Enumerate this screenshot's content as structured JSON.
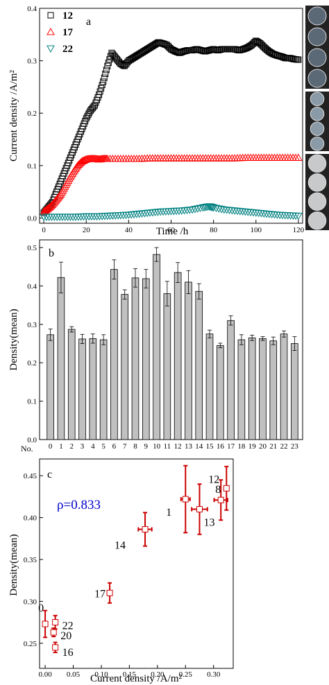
{
  "chart_data": [
    {
      "panel": "a",
      "type": "scatter",
      "xlabel": "Time /h",
      "ylabel": "Current density /A/m²",
      "xlim": [
        -2,
        122
      ],
      "ylim": [
        -0.01,
        0.4
      ],
      "xticks": [
        "0",
        "20",
        "40",
        "60",
        "80",
        "100",
        "120"
      ],
      "yticks": [
        "0.0",
        "0.1",
        "0.2",
        "0.3",
        "0.4"
      ],
      "legend_position": "top-left",
      "series": [
        {
          "name": "12",
          "marker": "square",
          "color": "#000000",
          "x": [
            0,
            2,
            4,
            6,
            8,
            10,
            12,
            14,
            16,
            18,
            20,
            22,
            24,
            26,
            28,
            30,
            32,
            34,
            36,
            38,
            40,
            42,
            44,
            46,
            48,
            50,
            52,
            54,
            56,
            58,
            60,
            62,
            64,
            66,
            68,
            70,
            72,
            74,
            76,
            78,
            80,
            82,
            84,
            86,
            88,
            90,
            92,
            94,
            96,
            98,
            100,
            102,
            104,
            106,
            108,
            110,
            112,
            114,
            116,
            118,
            120
          ],
          "y": [
            0.01,
            0.02,
            0.03,
            0.05,
            0.07,
            0.09,
            0.11,
            0.13,
            0.15,
            0.17,
            0.19,
            0.205,
            0.215,
            0.235,
            0.26,
            0.29,
            0.315,
            0.305,
            0.295,
            0.29,
            0.3,
            0.305,
            0.31,
            0.315,
            0.32,
            0.325,
            0.33,
            0.335,
            0.333,
            0.33,
            0.322,
            0.318,
            0.315,
            0.318,
            0.32,
            0.32,
            0.322,
            0.32,
            0.318,
            0.32,
            0.322,
            0.32,
            0.322,
            0.322,
            0.322,
            0.322,
            0.32,
            0.322,
            0.325,
            0.33,
            0.338,
            0.333,
            0.325,
            0.318,
            0.313,
            0.31,
            0.308,
            0.305,
            0.305,
            0.303,
            0.302
          ]
        },
        {
          "name": "17",
          "marker": "triangle-up",
          "color": "#ff0000",
          "x": [
            0,
            2,
            4,
            6,
            8,
            10,
            12,
            14,
            16,
            18,
            20,
            22,
            24,
            26,
            28,
            30,
            35,
            40,
            45,
            50,
            55,
            60,
            65,
            70,
            75,
            80,
            85,
            90,
            95,
            100,
            105,
            110,
            115,
            120
          ],
          "y": [
            0.012,
            0.018,
            0.025,
            0.035,
            0.045,
            0.06,
            0.075,
            0.088,
            0.1,
            0.108,
            0.112,
            0.113,
            0.113,
            0.112,
            0.113,
            0.113,
            0.113,
            0.113,
            0.113,
            0.114,
            0.114,
            0.114,
            0.114,
            0.114,
            0.114,
            0.114,
            0.114,
            0.114,
            0.115,
            0.115,
            0.115,
            0.115,
            0.115,
            0.115
          ]
        },
        {
          "name": "22",
          "marker": "triangle-down",
          "color": "#008080",
          "x": [
            0,
            5,
            10,
            15,
            20,
            25,
            30,
            35,
            40,
            45,
            50,
            55,
            60,
            65,
            70,
            75,
            78,
            80,
            85,
            90,
            95,
            100,
            105,
            110,
            115,
            120
          ],
          "y": [
            0.002,
            0.002,
            0.002,
            0.002,
            0.003,
            0.003,
            0.004,
            0.005,
            0.006,
            0.008,
            0.01,
            0.012,
            0.013,
            0.014,
            0.016,
            0.02,
            0.022,
            0.02,
            0.016,
            0.014,
            0.012,
            0.01,
            0.008,
            0.006,
            0.005,
            0.004
          ]
        }
      ],
      "annotations": [
        "a"
      ],
      "inset_images": [
        {
          "label": "12",
          "wells": 4
        },
        {
          "label": "17",
          "wells": 4
        },
        {
          "label": "22",
          "wells": 4
        }
      ]
    },
    {
      "panel": "b",
      "type": "bar",
      "xlabel": "",
      "ylabel": "Density(mean)",
      "x_prefix_label": "No.",
      "ylim": [
        0.0,
        0.52
      ],
      "yticks": [
        "0.0",
        "0.1",
        "0.2",
        "0.3",
        "0.4",
        "0.5"
      ],
      "categories": [
        "0",
        "1",
        "2",
        "3",
        "4",
        "5",
        "6",
        "7",
        "8",
        "9",
        "10",
        "11",
        "12",
        "13",
        "14",
        "15",
        "16",
        "17",
        "18",
        "19",
        "20",
        "21",
        "22",
        "23"
      ],
      "values": [
        0.273,
        0.422,
        0.287,
        0.262,
        0.263,
        0.26,
        0.443,
        0.378,
        0.421,
        0.419,
        0.482,
        0.38,
        0.435,
        0.41,
        0.386,
        0.275,
        0.245,
        0.31,
        0.26,
        0.265,
        0.263,
        0.257,
        0.275,
        0.25
      ],
      "errors": [
        0.015,
        0.04,
        0.007,
        0.012,
        0.012,
        0.013,
        0.025,
        0.012,
        0.024,
        0.024,
        0.018,
        0.032,
        0.026,
        0.03,
        0.02,
        0.01,
        0.006,
        0.012,
        0.013,
        0.007,
        0.005,
        0.01,
        0.008,
        0.018
      ],
      "bar_color": "#c0c0c0",
      "annotations": [
        "b"
      ]
    },
    {
      "panel": "c",
      "type": "scatter",
      "xlabel": "Current density /A/m²",
      "ylabel": "Density(mean)",
      "xlim": [
        -0.01,
        0.335
      ],
      "ylim": [
        0.22,
        0.47
      ],
      "xticks": [
        "0.00",
        "0.05",
        "0.10",
        "0.15",
        "0.20",
        "0.25",
        "0.30"
      ],
      "yticks": [
        "0.25",
        "0.30",
        "0.35",
        "0.40",
        "0.45"
      ],
      "points": [
        {
          "label": "0",
          "x": 0.0,
          "y": 0.273,
          "xerr": 0.003,
          "yerr": 0.016
        },
        {
          "label": "22",
          "x": 0.018,
          "y": 0.275,
          "xerr": 0.003,
          "yerr": 0.008
        },
        {
          "label": "20",
          "x": 0.015,
          "y": 0.263,
          "xerr": 0.003,
          "yerr": 0.005
        },
        {
          "label": "16",
          "x": 0.018,
          "y": 0.245,
          "xerr": 0.003,
          "yerr": 0.006
        },
        {
          "label": "17",
          "x": 0.115,
          "y": 0.31,
          "xerr": 0.004,
          "yerr": 0.012
        },
        {
          "label": "14",
          "x": 0.178,
          "y": 0.386,
          "xerr": 0.012,
          "yerr": 0.02
        },
        {
          "label": "1",
          "x": 0.25,
          "y": 0.422,
          "xerr": 0.008,
          "yerr": 0.04
        },
        {
          "label": "13",
          "x": 0.275,
          "y": 0.41,
          "xerr": 0.014,
          "yerr": 0.03
        },
        {
          "label": "8",
          "x": 0.313,
          "y": 0.421,
          "xerr": 0.012,
          "yerr": 0.024
        },
        {
          "label": "12",
          "x": 0.323,
          "y": 0.435,
          "xerr": 0.004,
          "yerr": 0.026
        }
      ],
      "marker_color": "#cc0000",
      "annotations": [
        "c",
        "ρ=0.833"
      ],
      "rho_color": "#0000cc"
    }
  ]
}
